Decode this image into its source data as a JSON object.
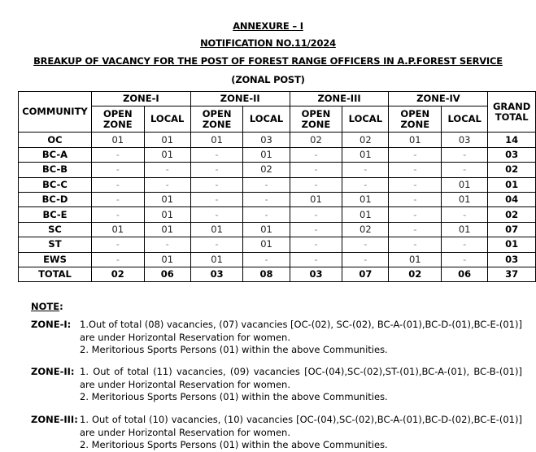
{
  "header": {
    "annexure": "ANNEXURE – I",
    "notification": "NOTIFICATION NO.11/2024",
    "title": "BREAKUP OF VACANCY FOR THE POST OF FOREST RANGE OFFICERS IN A.P.FOREST SERVICE",
    "subtitle": "(ZONAL POST)"
  },
  "table": {
    "community_header": "COMMUNITY",
    "zones": [
      "ZONE-I",
      "ZONE-II",
      "ZONE-III",
      "ZONE-IV"
    ],
    "sub_open": "OPEN ZONE",
    "sub_local": "LOCAL",
    "grand_total_header": "GRAND TOTAL",
    "rows": [
      {
        "community": "OC",
        "values": [
          "01",
          "01",
          "01",
          "03",
          "02",
          "02",
          "01",
          "03"
        ],
        "total": "14"
      },
      {
        "community": "BC-A",
        "values": [
          "-",
          "01",
          "-",
          "01",
          "-",
          "01",
          "-",
          "-"
        ],
        "total": "03"
      },
      {
        "community": "BC-B",
        "values": [
          "-",
          "-",
          "-",
          "02",
          "-",
          "-",
          "-",
          "-"
        ],
        "total": "02"
      },
      {
        "community": "BC-C",
        "values": [
          "-",
          "-",
          "-",
          "-",
          "-",
          "-",
          "-",
          "01"
        ],
        "total": "01"
      },
      {
        "community": "BC-D",
        "values": [
          "-",
          "01",
          "-",
          "-",
          "01",
          "01",
          "-",
          "01"
        ],
        "total": "04"
      },
      {
        "community": "BC-E",
        "values": [
          "-",
          "01",
          "-",
          "-",
          "-",
          "01",
          "-",
          "-"
        ],
        "total": "02"
      },
      {
        "community": "SC",
        "values": [
          "01",
          "01",
          "01",
          "01",
          "-",
          "02",
          "-",
          "01"
        ],
        "total": "07"
      },
      {
        "community": "ST",
        "values": [
          "-",
          "-",
          "-",
          "01",
          "-",
          "-",
          "-",
          "-"
        ],
        "total": "01"
      },
      {
        "community": "EWS",
        "values": [
          "-",
          "01",
          "01",
          "-",
          "-",
          "-",
          "01",
          "-"
        ],
        "total": "03"
      }
    ],
    "total_row": {
      "community": "TOTAL",
      "values": [
        "02",
        "06",
        "03",
        "08",
        "03",
        "07",
        "02",
        "06"
      ],
      "total": "37"
    }
  },
  "notes": {
    "heading": "NOTE",
    "colon": ":",
    "zones": [
      {
        "label": "ZONE-I:",
        "line1": "1.Out of total (08) vacancies, (07) vacancies [OC-(02), SC-(02), BC-A-(01),BC-D-(01),BC-E-(01)]",
        "line2": "are under Horizontal Reservation for women.",
        "line3": "2. Meritorious Sports Persons (01) within the above Communities."
      },
      {
        "label": "ZONE-II:",
        "line1": "1. Out of total (11) vacancies, (09) vacancies [OC-(04),SC-(02),ST-(01),BC-A-(01), BC-B-(01)]",
        "line2": "are under Horizontal Reservation for women.",
        "line3": "2. Meritorious Sports Persons (01) within the above Communities."
      },
      {
        "label": "ZONE-III:",
        "line1": "1. Out of total (10) vacancies, (10) vacancies [OC-(04),SC-(02),BC-A-(01),BC-D-(02),BC-E-(01)]",
        "line2": "are under Horizontal Reservation for women.",
        "line3": "2. Meritorious Sports Persons (01) within the above Communities."
      }
    ]
  }
}
